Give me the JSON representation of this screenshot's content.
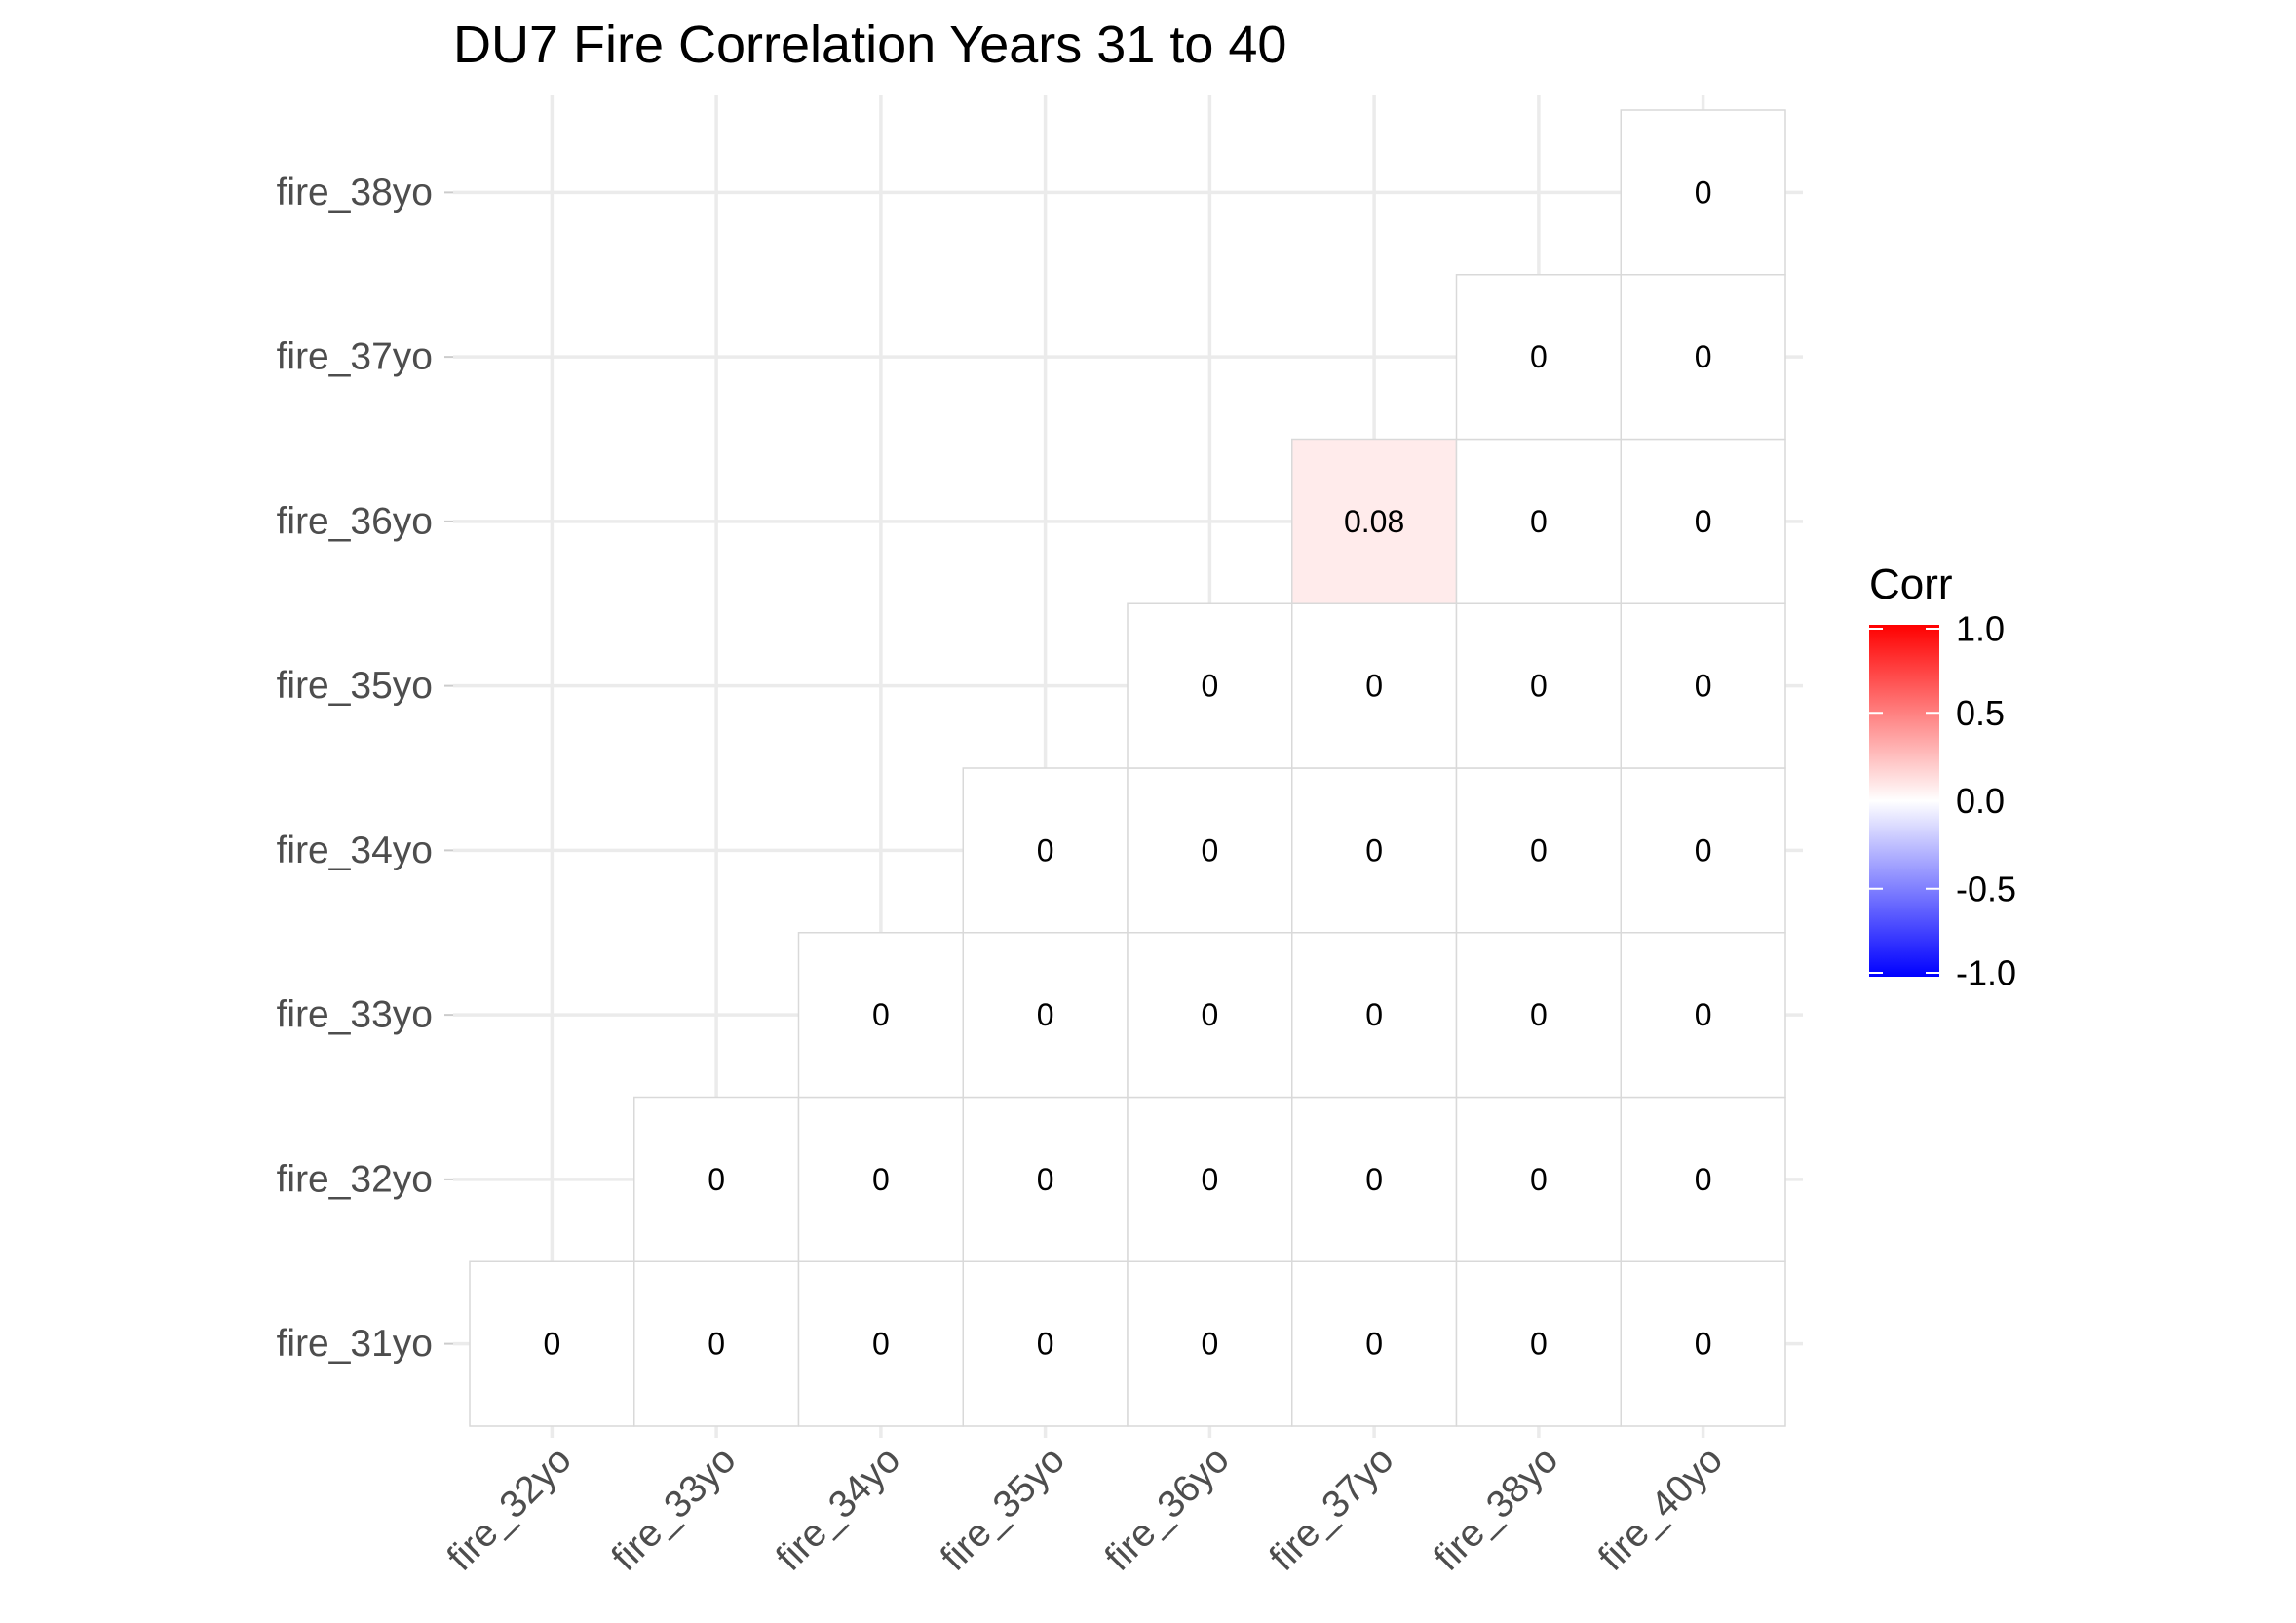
{
  "chart_data": {
    "type": "heatmap",
    "title": "DU7 Fire Correlation Years 31 to 40",
    "x_categories": [
      "fire_32yo",
      "fire_33yo",
      "fire_34yo",
      "fire_35yo",
      "fire_36yo",
      "fire_37yo",
      "fire_38yo",
      "fire_40yo"
    ],
    "y_categories": [
      "fire_31yo",
      "fire_32yo",
      "fire_33yo",
      "fire_34yo",
      "fire_35yo",
      "fire_36yo",
      "fire_37yo",
      "fire_38yo"
    ],
    "cells": [
      {
        "x": "fire_32yo",
        "y": "fire_31yo",
        "value": 0,
        "label": "0"
      },
      {
        "x": "fire_33yo",
        "y": "fire_31yo",
        "value": 0,
        "label": "0"
      },
      {
        "x": "fire_34yo",
        "y": "fire_31yo",
        "value": 0,
        "label": "0"
      },
      {
        "x": "fire_35yo",
        "y": "fire_31yo",
        "value": 0,
        "label": "0"
      },
      {
        "x": "fire_36yo",
        "y": "fire_31yo",
        "value": 0,
        "label": "0"
      },
      {
        "x": "fire_37yo",
        "y": "fire_31yo",
        "value": 0,
        "label": "0"
      },
      {
        "x": "fire_38yo",
        "y": "fire_31yo",
        "value": 0,
        "label": "0"
      },
      {
        "x": "fire_40yo",
        "y": "fire_31yo",
        "value": 0,
        "label": "0"
      },
      {
        "x": "fire_33yo",
        "y": "fire_32yo",
        "value": 0,
        "label": "0"
      },
      {
        "x": "fire_34yo",
        "y": "fire_32yo",
        "value": 0,
        "label": "0"
      },
      {
        "x": "fire_35yo",
        "y": "fire_32yo",
        "value": 0,
        "label": "0"
      },
      {
        "x": "fire_36yo",
        "y": "fire_32yo",
        "value": 0,
        "label": "0"
      },
      {
        "x": "fire_37yo",
        "y": "fire_32yo",
        "value": 0,
        "label": "0"
      },
      {
        "x": "fire_38yo",
        "y": "fire_32yo",
        "value": 0,
        "label": "0"
      },
      {
        "x": "fire_40yo",
        "y": "fire_32yo",
        "value": 0,
        "label": "0"
      },
      {
        "x": "fire_34yo",
        "y": "fire_33yo",
        "value": 0,
        "label": "0"
      },
      {
        "x": "fire_35yo",
        "y": "fire_33yo",
        "value": 0,
        "label": "0"
      },
      {
        "x": "fire_36yo",
        "y": "fire_33yo",
        "value": 0,
        "label": "0"
      },
      {
        "x": "fire_37yo",
        "y": "fire_33yo",
        "value": 0,
        "label": "0"
      },
      {
        "x": "fire_38yo",
        "y": "fire_33yo",
        "value": 0,
        "label": "0"
      },
      {
        "x": "fire_40yo",
        "y": "fire_33yo",
        "value": 0,
        "label": "0"
      },
      {
        "x": "fire_35yo",
        "y": "fire_34yo",
        "value": 0,
        "label": "0"
      },
      {
        "x": "fire_36yo",
        "y": "fire_34yo",
        "value": 0,
        "label": "0"
      },
      {
        "x": "fire_37yo",
        "y": "fire_34yo",
        "value": 0,
        "label": "0"
      },
      {
        "x": "fire_38yo",
        "y": "fire_34yo",
        "value": 0,
        "label": "0"
      },
      {
        "x": "fire_40yo",
        "y": "fire_34yo",
        "value": 0,
        "label": "0"
      },
      {
        "x": "fire_36yo",
        "y": "fire_35yo",
        "value": 0,
        "label": "0"
      },
      {
        "x": "fire_37yo",
        "y": "fire_35yo",
        "value": 0,
        "label": "0"
      },
      {
        "x": "fire_38yo",
        "y": "fire_35yo",
        "value": 0,
        "label": "0"
      },
      {
        "x": "fire_40yo",
        "y": "fire_35yo",
        "value": 0,
        "label": "0"
      },
      {
        "x": "fire_37yo",
        "y": "fire_36yo",
        "value": 0.08,
        "label": "0.08"
      },
      {
        "x": "fire_38yo",
        "y": "fire_36yo",
        "value": 0,
        "label": "0"
      },
      {
        "x": "fire_40yo",
        "y": "fire_36yo",
        "value": 0,
        "label": "0"
      },
      {
        "x": "fire_38yo",
        "y": "fire_37yo",
        "value": 0,
        "label": "0"
      },
      {
        "x": "fire_40yo",
        "y": "fire_37yo",
        "value": 0,
        "label": "0"
      },
      {
        "x": "fire_40yo",
        "y": "fire_38yo",
        "value": 0,
        "label": "0"
      }
    ],
    "legend": {
      "title": "Corr",
      "range": [
        -1,
        1
      ],
      "ticks": [
        "1.0",
        "0.5",
        "0.0",
        "-0.5",
        "-1.0"
      ],
      "tick_values": [
        1,
        0.5,
        0,
        -0.5,
        -1
      ],
      "colors": {
        "low": "#0000FF",
        "mid": "#FFFFFF",
        "high": "#FF0000"
      },
      "placement": "right"
    },
    "grid": true,
    "grid_color": "#EBEBEB",
    "cell_border_color": "#D9D9D9"
  }
}
